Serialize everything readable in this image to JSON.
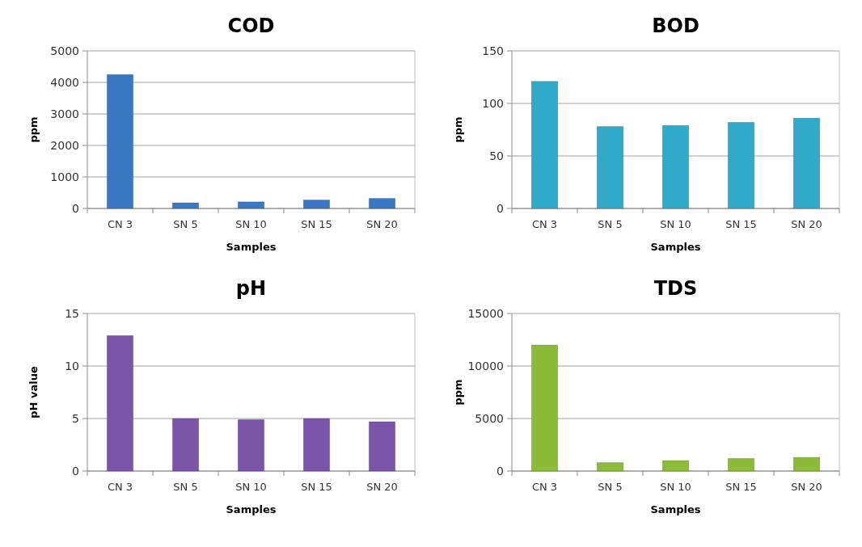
{
  "chart_data": [
    {
      "type": "bar",
      "title": "COD",
      "xlabel": "Samples",
      "ylabel": "ppm",
      "categories": [
        "CN 3",
        "SN 5",
        "SN 10",
        "SN 15",
        "SN 20"
      ],
      "values": [
        4250,
        180,
        210,
        270,
        320
      ],
      "color": "#3a78c4",
      "ylim": [
        0,
        5000
      ],
      "yticks": [
        0,
        1000,
        2000,
        3000,
        4000,
        5000
      ],
      "grid": "y"
    },
    {
      "type": "bar",
      "title": "BOD",
      "xlabel": "Samples",
      "ylabel": "ppm",
      "categories": [
        "CN 3",
        "SN 5",
        "SN 10",
        "SN 15",
        "SN 20"
      ],
      "values": [
        121,
        78,
        79,
        82,
        86
      ],
      "color": "#31a9c9",
      "ylim": [
        0,
        150
      ],
      "yticks": [
        0,
        50,
        100,
        150
      ],
      "grid": "y"
    },
    {
      "type": "bar",
      "title": "pH",
      "xlabel": "Samples",
      "ylabel": "pH value",
      "categories": [
        "CN 3",
        "SN 5",
        "SN 10",
        "SN 15",
        "SN 20"
      ],
      "values": [
        12.9,
        5.0,
        4.9,
        5.0,
        4.7
      ],
      "color": "#7b55a8",
      "ylim": [
        0,
        15
      ],
      "yticks": [
        0,
        5,
        10,
        15
      ],
      "grid": "y"
    },
    {
      "type": "bar",
      "title": "TDS",
      "xlabel": "Samples",
      "ylabel": "ppm",
      "categories": [
        "CN 3",
        "SN 5",
        "SN 10",
        "SN 15",
        "SN 20"
      ],
      "values": [
        12000,
        800,
        1000,
        1200,
        1300
      ],
      "color": "#8cbb3a",
      "ylim": [
        0,
        15000
      ],
      "yticks": [
        0,
        5000,
        10000,
        15000
      ],
      "grid": "y"
    }
  ]
}
